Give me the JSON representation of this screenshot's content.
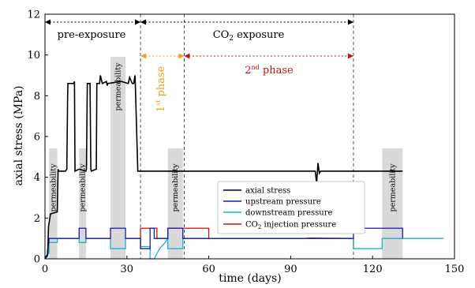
{
  "chart_data": {
    "type": "line",
    "xlabel": "time (days)",
    "ylabel": "axial stress (MPa)",
    "xlim": [
      0,
      150
    ],
    "ylim": [
      0,
      12
    ],
    "x_ticks": [
      0,
      30,
      60,
      90,
      120,
      150
    ],
    "y_ticks": [
      0,
      2,
      4,
      6,
      8,
      10,
      12
    ],
    "grid": false,
    "legend_position": "lower-center",
    "permeability_windows": [
      {
        "label": "permeability",
        "x": [
          1.5,
          4.5
        ]
      },
      {
        "label": "permeability",
        "x": [
          12.5,
          15.0
        ]
      },
      {
        "label": "permeability",
        "x": [
          24.0,
          29.5
        ]
      },
      {
        "label": "permeability",
        "x": [
          45.0,
          50.5
        ]
      },
      {
        "label": "permeability",
        "x": [
          123.5,
          131.0
        ]
      }
    ],
    "phase_markers_x": [
      35,
      51,
      113
    ],
    "annotations": {
      "pre_exposure": "pre-exposure",
      "co2_exposure_prefix": "CO",
      "co2_exposure_sub": "2",
      "co2_exposure_suffix": " exposure",
      "first_phase_num": "1",
      "first_phase_sup": "st",
      "first_phase_word": " phase",
      "second_phase_num": "2",
      "second_phase_sup": "nd",
      "second_phase_word": " phase"
    },
    "colors": {
      "axial_stress": "#000000",
      "upstream": "#1a1aa6",
      "downstream": "#1ab0d8",
      "co2_injection": "#cc1111",
      "first_phase": "#f0a020",
      "second_phase": "#cc1111",
      "permeability_band": "#d9d9d9"
    },
    "series": [
      {
        "name": "axial stress",
        "key": "axial_stress",
        "x": [
          0,
          1,
          1.3,
          1.8,
          2,
          4.5,
          4.8,
          5,
          7,
          7.5,
          8,
          8.3,
          8.4,
          10.5,
          10.8,
          11,
          12.5,
          15,
          15.2,
          15.5,
          16.5,
          16.8,
          17,
          18.8,
          19,
          20,
          20.3,
          21,
          22.5,
          22.8,
          23,
          28,
          30.5,
          31,
          32,
          32.5,
          33,
          34,
          35,
          60,
          80,
          99,
          99.5,
          100,
          100.5,
          101,
          113,
          120,
          131
        ],
        "y": [
          0,
          0.2,
          1.6,
          2.0,
          2.2,
          2.3,
          4.4,
          4.3,
          4.3,
          4.3,
          4.4,
          8.0,
          8.6,
          8.6,
          8.7,
          4.3,
          4.4,
          4.3,
          4.4,
          8.6,
          8.6,
          4.4,
          4.3,
          4.4,
          8.6,
          8.6,
          9.0,
          8.6,
          8.7,
          8.5,
          8.6,
          8.7,
          8.6,
          8.9,
          8.6,
          8.6,
          9.0,
          4.3,
          4.3,
          4.3,
          4.3,
          4.3,
          3.7,
          4.7,
          4.2,
          4.3,
          4.3,
          4.3,
          4.3
        ]
      },
      {
        "name": "upstream pressure",
        "key": "upstream",
        "x": [
          0,
          0.8,
          1,
          1.5,
          1.5,
          4.5,
          4.5,
          12.5,
          12.5,
          15,
          15,
          24,
          24,
          29.5,
          29.5,
          35,
          35,
          38.5,
          38.5,
          40,
          40,
          44,
          45,
          45,
          50.5,
          50.5,
          113,
          113,
          123.5,
          123.5,
          131,
          131
        ],
        "y": [
          0.1,
          0.1,
          0.5,
          0.9,
          1.0,
          1.0,
          1.0,
          1.0,
          1.5,
          1.5,
          1.0,
          1.0,
          1.5,
          1.5,
          1.0,
          1.0,
          0.5,
          0.5,
          1.5,
          1.5,
          1.0,
          1.0,
          1.0,
          1.5,
          1.5,
          1.0,
          1.0,
          1.5,
          1.5,
          1.5,
          1.5,
          1.0
        ]
      },
      {
        "name": "downstream pressure",
        "key": "downstream",
        "x": [
          0,
          1.5,
          1.5,
          4.5,
          4.5,
          12.5,
          12.5,
          15,
          15,
          24,
          24,
          29.5,
          29.5,
          35,
          35,
          38.5,
          38.5,
          40,
          42,
          44,
          45,
          45,
          50.5,
          50.5,
          113,
          113,
          123.5,
          123.5,
          131,
          131,
          146
        ],
        "y": [
          0.1,
          0.3,
          0.8,
          0.8,
          1.0,
          1.0,
          0.8,
          0.8,
          1.0,
          1.0,
          0.5,
          0.5,
          1.0,
          1.0,
          0.6,
          0.6,
          0.0,
          0.0,
          0.5,
          0.8,
          1.0,
          0.5,
          0.5,
          1.0,
          1.0,
          0.5,
          0.5,
          1.0,
          1.0,
          1.0,
          1.0
        ]
      },
      {
        "name": "CO2 injection pressure",
        "key": "co2_injection",
        "x": [
          35,
          35,
          41,
          41,
          45,
          45,
          51,
          51,
          60,
          60,
          95,
          97,
          113,
          113
        ],
        "y": [
          0.5,
          1.5,
          1.5,
          1.0,
          1.0,
          1.5,
          1.5,
          1.5,
          1.5,
          1.0,
          1.0,
          1.02,
          1.0,
          0.5
        ]
      }
    ],
    "legend": [
      {
        "key": "axial_stress",
        "label": "axial stress"
      },
      {
        "key": "upstream",
        "label": "upstream pressure"
      },
      {
        "key": "downstream",
        "label": "downstream pressure"
      },
      {
        "key": "co2_injection",
        "label_prefix": "CO",
        "label_sub": "2",
        "label_suffix": " injection pressure"
      }
    ]
  }
}
